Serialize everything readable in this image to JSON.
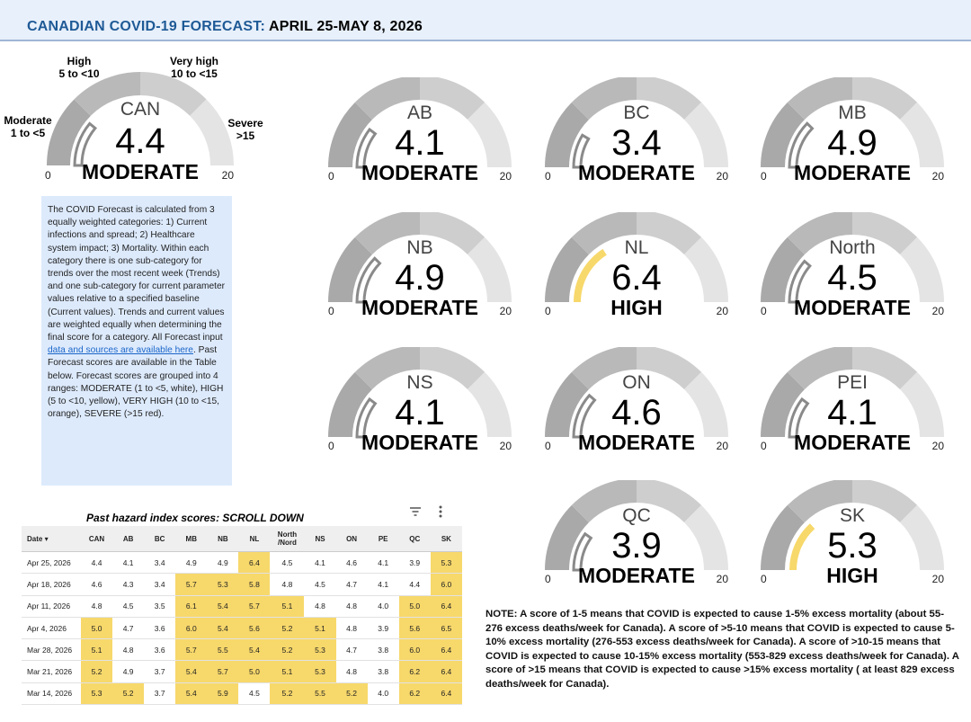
{
  "header": {
    "title_part1": "CANADIAN COVID-19 FORECAST:",
    "title_part2": "APRIL 25-MAY 8, 2026"
  },
  "colors": {
    "high": "#f7d86b",
    "header_bg": "#e8f0fb",
    "title_blue": "#1f5a96"
  },
  "scale_labels": {
    "moderate": [
      "Moderate",
      "1 to <5"
    ],
    "high": [
      "High",
      "5 to <10"
    ],
    "very_high": [
      "Very high",
      "10 to <15"
    ],
    "severe": [
      "Severe",
      ">15"
    ]
  },
  "chart_data": {
    "type": "gauge",
    "min": 0,
    "max": 20,
    "min_label": "0",
    "max_label": "20",
    "gauges": [
      {
        "region": "CAN",
        "value": 4.4,
        "value_text": "4.4",
        "level": "MODERATE"
      },
      {
        "region": "AB",
        "value": 4.1,
        "value_text": "4.1",
        "level": "MODERATE"
      },
      {
        "region": "BC",
        "value": 3.4,
        "value_text": "3.4",
        "level": "MODERATE"
      },
      {
        "region": "MB",
        "value": 4.9,
        "value_text": "4.9",
        "level": "MODERATE"
      },
      {
        "region": "NB",
        "value": 4.9,
        "value_text": "4.9",
        "level": "MODERATE"
      },
      {
        "region": "NL",
        "value": 6.4,
        "value_text": "6.4",
        "level": "HIGH"
      },
      {
        "region": "North",
        "value": 4.5,
        "value_text": "4.5",
        "level": "MODERATE"
      },
      {
        "region": "NS",
        "value": 4.1,
        "value_text": "4.1",
        "level": "MODERATE"
      },
      {
        "region": "ON",
        "value": 4.6,
        "value_text": "4.6",
        "level": "MODERATE"
      },
      {
        "region": "PEI",
        "value": 4.1,
        "value_text": "4.1",
        "level": "MODERATE"
      },
      {
        "region": "QC",
        "value": 3.9,
        "value_text": "3.9",
        "level": "MODERATE"
      },
      {
        "region": "SK",
        "value": 5.3,
        "value_text": "5.3",
        "level": "HIGH"
      }
    ]
  },
  "description": {
    "text_before_link": "The COVID Forecast is calculated from 3 equally weighted categories: 1) Current infections and spread; 2) Healthcare system impact; 3) Mortality. Within each category there is one sub-category for trends over the most recent week (Trends) and one sub-category for current parameter values relative to a specified baseline (Current values). Trends and current values are weighted equally when determining the final score for a category. All Forecast input ",
    "link_text": "data and sources are available here",
    "text_after_link": ". Past Forecast scores are available in the Table below. Forecast scores are grouped into 4 ranges: MODERATE (1 to <5, white), HIGH (5 to <10, yellow), VERY HIGH (10 to <15, orange), SEVERE (>15 red)."
  },
  "table": {
    "title": "Past hazard index scores: SCROLL DOWN",
    "filter_icon": "filter-icon",
    "menu_icon": "more-vert-icon",
    "columns": [
      "Date ▾",
      "CAN",
      "AB",
      "BC",
      "MB",
      "NB",
      "NL",
      "North /Nord",
      "NS",
      "ON",
      "PE",
      "QC",
      "SK"
    ],
    "rows": [
      [
        "Apr 25, 2026",
        "4.4",
        "4.1",
        "3.4",
        "4.9",
        "4.9",
        "6.4",
        "4.5",
        "4.1",
        "4.6",
        "4.1",
        "3.9",
        "5.3"
      ],
      [
        "Apr 18, 2026",
        "4.6",
        "4.3",
        "3.4",
        "5.7",
        "5.3",
        "5.8",
        "4.8",
        "4.5",
        "4.7",
        "4.1",
        "4.4",
        "6.0"
      ],
      [
        "Apr 11, 2026",
        "4.8",
        "4.5",
        "3.5",
        "6.1",
        "5.4",
        "5.7",
        "5.1",
        "4.8",
        "4.8",
        "4.0",
        "5.0",
        "6.4"
      ],
      [
        "Apr 4, 2026",
        "5.0",
        "4.7",
        "3.6",
        "6.0",
        "5.4",
        "5.6",
        "5.2",
        "5.1",
        "4.8",
        "3.9",
        "5.6",
        "6.5"
      ],
      [
        "Mar 28, 2026",
        "5.1",
        "4.8",
        "3.6",
        "5.7",
        "5.5",
        "5.4",
        "5.2",
        "5.3",
        "4.7",
        "3.8",
        "6.0",
        "6.4"
      ],
      [
        "Mar 21, 2026",
        "5.2",
        "4.9",
        "3.7",
        "5.4",
        "5.7",
        "5.0",
        "5.1",
        "5.3",
        "4.8",
        "3.8",
        "6.2",
        "6.4"
      ],
      [
        "Mar 14, 2026",
        "5.3",
        "5.2",
        "3.7",
        "5.4",
        "5.9",
        "4.5",
        "5.2",
        "5.5",
        "5.2",
        "4.0",
        "6.2",
        "6.4"
      ]
    ]
  },
  "note": "NOTE: A score of 1-5 means that COVID is expected to cause 1-5% excess mortality (about 55-276 excess deaths/week for Canada). A score of >5-10 means that COVID is expected to cause 5-10% excess mortality (276-553 excess deaths/week for Canada). A score of >10-15 means that COVID is expected to cause 10-15% excess mortality (553-829 excess deaths/week for Canada). A score of >15 means that COVID is expected to cause >15% excess mortality ( at least 829 excess deaths/week for Canada)."
}
